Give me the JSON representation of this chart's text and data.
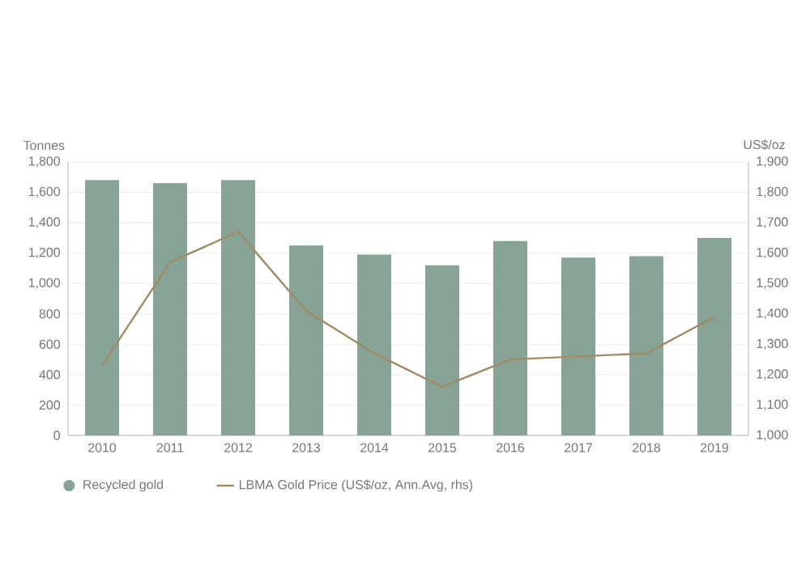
{
  "chart_data": {
    "type": "bar",
    "ylabel": "Tonnes",
    "y2label": "US$/oz",
    "categories": [
      "2010",
      "2011",
      "2012",
      "2013",
      "2014",
      "2015",
      "2016",
      "2017",
      "2018",
      "2019"
    ],
    "series": [
      {
        "name": "Recycled gold",
        "color": "#87a396",
        "values": [
          1680,
          1660,
          1680,
          1250,
          1190,
          1120,
          1280,
          1170,
          1180,
          1300
        ]
      },
      {
        "name": "LBMA Gold Price (US$/oz, Ann.Avg, rhs)",
        "type": "line",
        "axis": "y2",
        "color": "#a08c64",
        "values": [
          1230,
          1570,
          1670,
          1410,
          1270,
          1160,
          1250,
          1260,
          1270,
          1390
        ]
      }
    ],
    "ylim": [
      0,
      1800
    ],
    "yticks": [
      {
        "value": 0,
        "label": "0"
      },
      {
        "value": 200,
        "label": "200"
      },
      {
        "value": 400,
        "label": "400"
      },
      {
        "value": 600,
        "label": "600"
      },
      {
        "value": 800,
        "label": "800"
      },
      {
        "value": 1000,
        "label": "1,000"
      },
      {
        "value": 1200,
        "label": "1,200"
      },
      {
        "value": 1400,
        "label": "1,400"
      },
      {
        "value": 1600,
        "label": "1,600"
      },
      {
        "value": 1800,
        "label": "1,800"
      }
    ],
    "y2lim": [
      1000,
      1900
    ],
    "y2ticks": [
      {
        "value": 1000,
        "label": "1,000"
      },
      {
        "value": 1100,
        "label": "1,100"
      },
      {
        "value": 1200,
        "label": "1,200"
      },
      {
        "value": 1300,
        "label": "1,300"
      },
      {
        "value": 1400,
        "label": "1,400"
      },
      {
        "value": 1500,
        "label": "1,500"
      },
      {
        "value": 1600,
        "label": "1,600"
      },
      {
        "value": 1700,
        "label": "1,700"
      },
      {
        "value": 1800,
        "label": "1,800"
      },
      {
        "value": 1900,
        "label": "1,900"
      }
    ],
    "grid": "y",
    "legend": "bottom",
    "marker": "none"
  }
}
